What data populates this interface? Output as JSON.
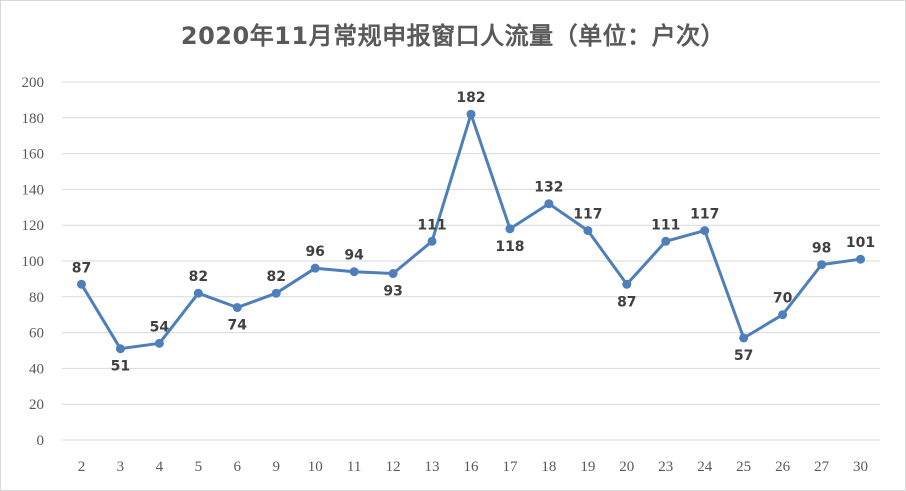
{
  "chart_data": {
    "type": "line",
    "title": "2020年11月常规申报窗口人流量（单位：户次）",
    "xlabel": "",
    "ylabel": "",
    "categories": [
      "2",
      "3",
      "4",
      "5",
      "6",
      "9",
      "10",
      "11",
      "12",
      "13",
      "16",
      "17",
      "18",
      "19",
      "20",
      "23",
      "24",
      "25",
      "26",
      "27",
      "30"
    ],
    "series": [
      {
        "values": [
          87,
          51,
          54,
          82,
          74,
          82,
          96,
          94,
          93,
          111,
          182,
          118,
          132,
          117,
          87,
          111,
          117,
          57,
          70,
          98,
          101
        ]
      }
    ],
    "ylim": [
      0,
      200
    ],
    "yticks": [
      "0",
      "20",
      "40",
      "60",
      "80",
      "100",
      "120",
      "140",
      "160",
      "180",
      "200"
    ],
    "data_labels": [
      "87",
      "51",
      "54",
      "82",
      "74",
      "82",
      "96",
      "94",
      "93",
      "111",
      "182",
      "118",
      "132",
      "117",
      "87",
      "111",
      "117",
      "57",
      "70",
      "98",
      "101"
    ],
    "grid": true,
    "legend": "none",
    "line_color": "#4f7fba",
    "grid_color": "#d9d9d9",
    "title_color": "#595959"
  }
}
